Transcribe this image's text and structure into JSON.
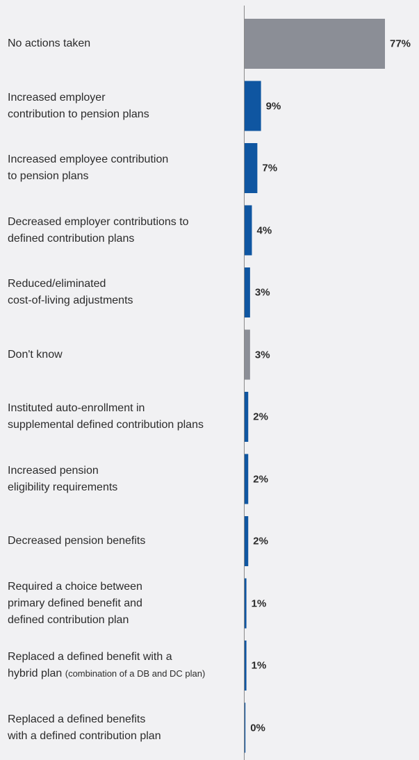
{
  "chart_data": {
    "type": "bar",
    "orientation": "horizontal",
    "categories": [
      [
        "No actions taken"
      ],
      [
        "Increased employer",
        "contribution to pension plans"
      ],
      [
        "Increased employee contribution",
        "to pension plans"
      ],
      [
        "Decreased employer contributions to",
        "defined contribution plans"
      ],
      [
        "Reduced/eliminated",
        "cost-of-living adjustments"
      ],
      [
        "Don't know"
      ],
      [
        "Instituted auto-enrollment in",
        "supplemental defined contribution plans"
      ],
      [
        "Increased pension",
        "eligibility requirements"
      ],
      [
        "Decreased pension benefits"
      ],
      [
        "Required a choice between",
        "primary defined benefit and",
        "defined contribution plan"
      ],
      [
        "Replaced a defined benefit with a",
        "hybrid plan"
      ],
      [
        "Replaced a defined benefits",
        "with a defined contribution plan"
      ]
    ],
    "category_notes": [
      "",
      "",
      "",
      "",
      "",
      "",
      "",
      "",
      "",
      "",
      "(combination of a DB and DC plan)",
      ""
    ],
    "values": [
      77,
      9,
      7,
      4,
      3,
      3,
      2,
      2,
      2,
      1,
      1,
      0
    ],
    "value_labels": [
      "77%",
      "9%",
      "7%",
      "4%",
      "3%",
      "3%",
      "2%",
      "2%",
      "2%",
      "1%",
      "1%",
      "0%"
    ],
    "bar_colors": [
      "#8b8e96",
      "#0f56a1",
      "#0f56a1",
      "#0f56a1",
      "#0f56a1",
      "#8b8e96",
      "#0f56a1",
      "#0f56a1",
      "#0f56a1",
      "#0f56a1",
      "#0f56a1",
      "#0f56a1"
    ],
    "xlim": [
      0,
      77
    ],
    "grid": false,
    "legend": "none"
  }
}
